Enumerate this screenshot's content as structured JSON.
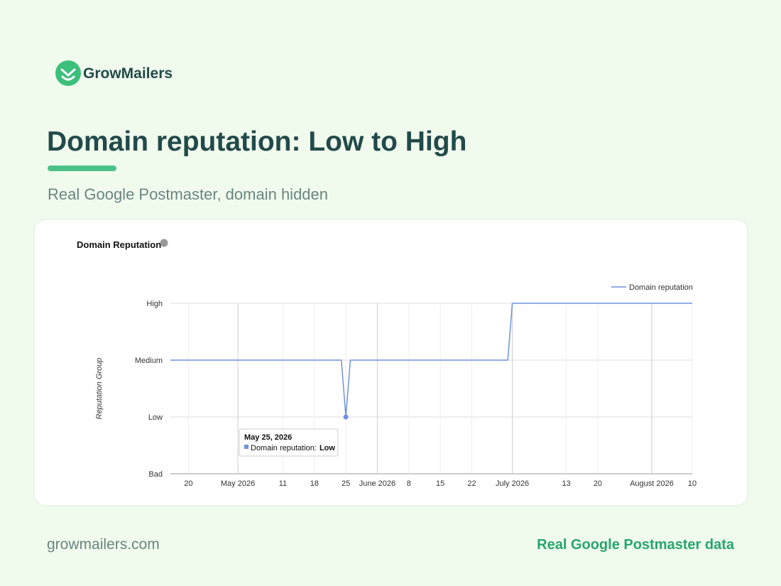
{
  "brand": "GrowMailers",
  "headline": "Domain reputation: Low to High",
  "subtitle": "Real Google Postmaster, domain hidden",
  "footer": {
    "site": "growmailers.com",
    "note": "Real Google Postmaster data"
  },
  "chart_data": {
    "type": "line",
    "title": "Domain Reputation",
    "y_label": "Reputation Group",
    "x": [
      "2026-04-16",
      "2026-05-24",
      "2026-05-25",
      "2026-05-26",
      "2026-06-30",
      "2026-07-01",
      "2026-08-10"
    ],
    "series": [
      {
        "name": "Domain reputation",
        "color": "#6f93e0",
        "values": [
          2,
          2,
          1,
          2,
          2,
          3,
          3
        ]
      }
    ],
    "xlim": [
      "2026-04-16",
      "2026-08-10"
    ],
    "xticks": [
      {
        "value": "2026-04-20",
        "label": "20"
      },
      {
        "value": "2026-05-01",
        "label": "May 2026"
      },
      {
        "value": "2026-05-11",
        "label": "11"
      },
      {
        "value": "2026-05-18",
        "label": "18"
      },
      {
        "value": "2026-05-25",
        "label": "25"
      },
      {
        "value": "2026-06-01",
        "label": "June 2026"
      },
      {
        "value": "2026-06-08",
        "label": "8"
      },
      {
        "value": "2026-06-15",
        "label": "15"
      },
      {
        "value": "2026-06-22",
        "label": "22"
      },
      {
        "value": "2026-07-01",
        "label": "July 2026"
      },
      {
        "value": "2026-07-13",
        "label": "13"
      },
      {
        "value": "2026-07-20",
        "label": "20"
      },
      {
        "value": "2026-08-01",
        "label": "August 2026"
      },
      {
        "value": "2026-08-10",
        "label": "10"
      }
    ],
    "ylim": [
      0,
      3
    ],
    "yticks": [
      {
        "value": 0,
        "label": "Bad"
      },
      {
        "value": 1,
        "label": "Low"
      },
      {
        "value": 2,
        "label": "Medium"
      },
      {
        "value": 3,
        "label": "High"
      }
    ],
    "grid": true,
    "legend": "top-right",
    "tooltip": {
      "title": "May 25, 2026",
      "label": "Domain reputation:",
      "value": "Low",
      "point": 2
    }
  }
}
